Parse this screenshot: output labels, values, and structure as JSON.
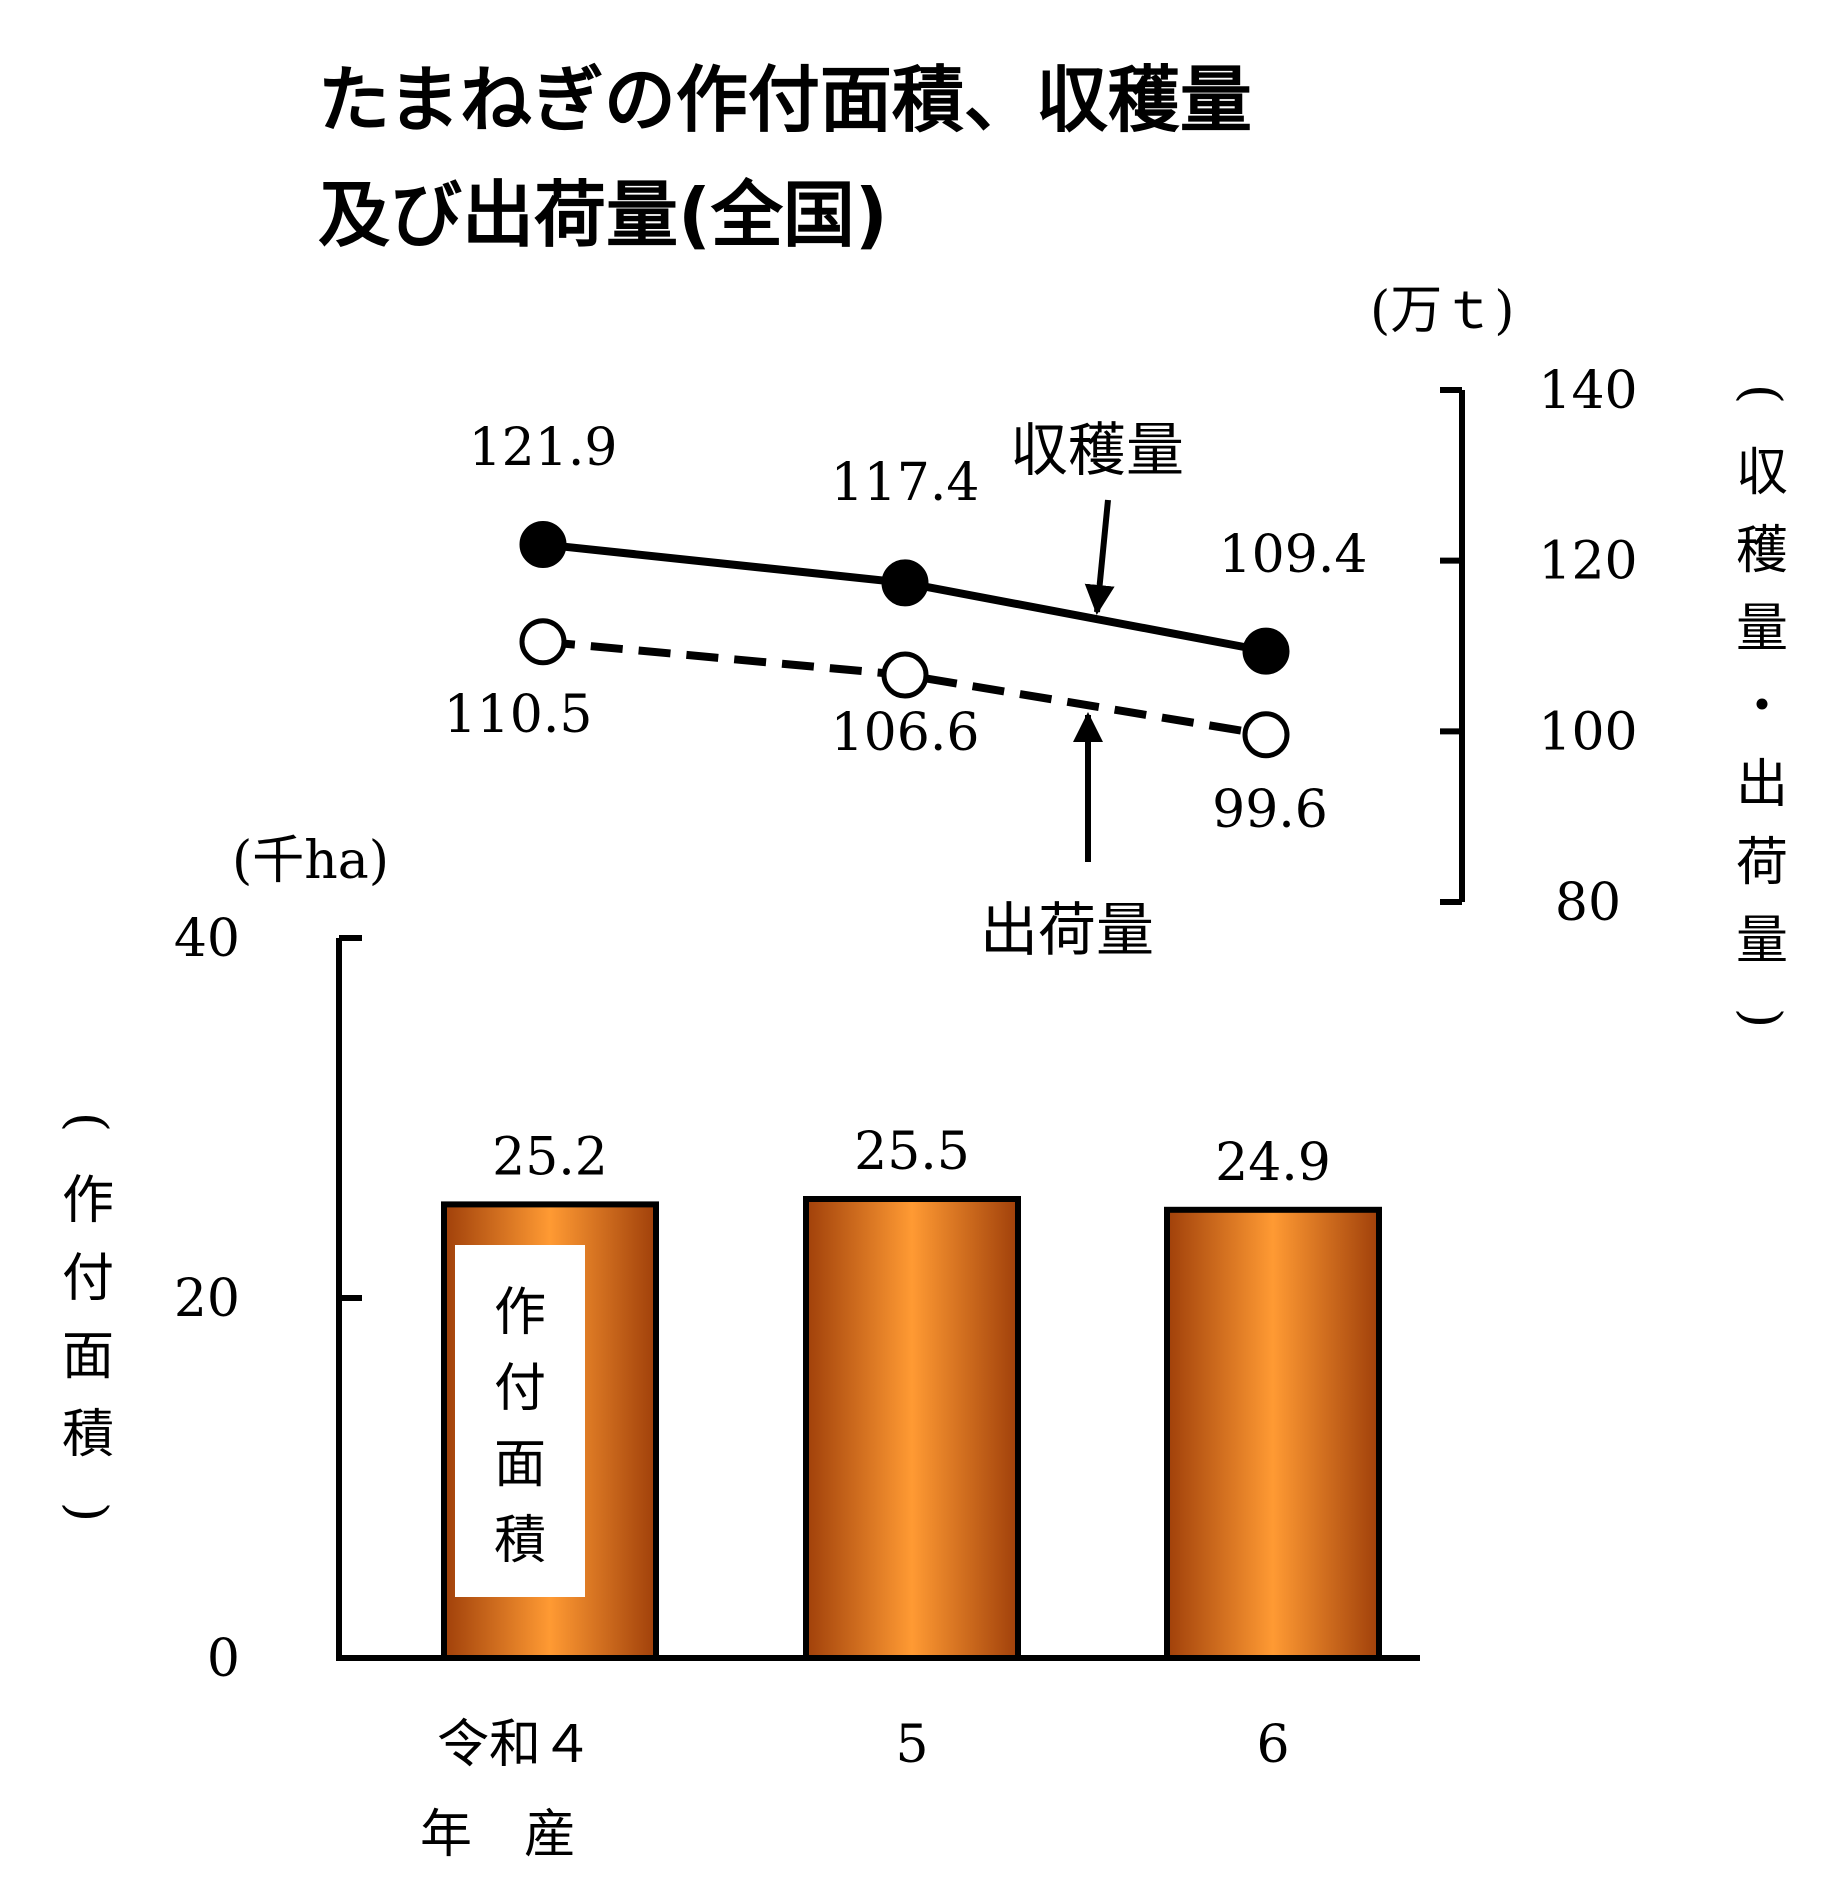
{
  "chart_data": {
    "title": [
      "たまねぎの作付面積、収穫量",
      "及び出荷量(全国)"
    ],
    "categories": [
      "令和４",
      "5",
      "6"
    ],
    "category_suffix": "年　産",
    "bar": {
      "type": "bar",
      "name": "作付面積",
      "values": [
        25.2,
        25.5,
        24.9
      ],
      "value_labels": [
        "25.2",
        "25.5",
        "24.9"
      ],
      "unit": "(千ha)",
      "ylabel": "(作付面積)",
      "ylim": [
        0,
        40
      ],
      "ticks": [
        "0",
        "20",
        "40"
      ],
      "colors": {
        "edge": "#a0400a",
        "center": "#ff9a33",
        "outline": "#000000"
      }
    },
    "line": {
      "type": "line",
      "unit": "(万ｔ)",
      "ylabel": "(収穫量・出荷量)",
      "ylim": [
        80,
        140
      ],
      "ticks": [
        "80",
        "100",
        "120",
        "140"
      ],
      "series": [
        {
          "name": "収穫量",
          "values": [
            121.9,
            117.4,
            109.4
          ],
          "value_labels": [
            "121.9",
            "117.4",
            "109.4"
          ],
          "marker": "filled",
          "style": "solid"
        },
        {
          "name": "出荷量",
          "values": [
            110.5,
            106.6,
            99.6
          ],
          "value_labels": [
            "110.5",
            "106.6",
            "99.6"
          ],
          "marker": "open",
          "style": "dashed"
        }
      ]
    }
  }
}
